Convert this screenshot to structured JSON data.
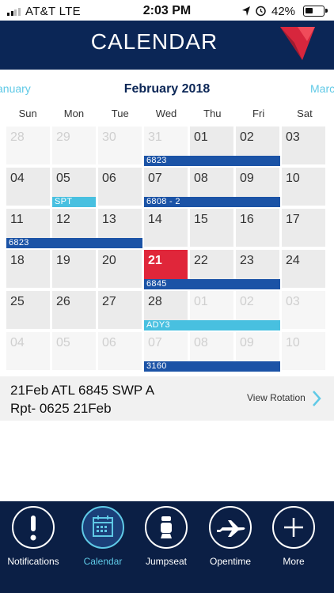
{
  "status": {
    "carrier": "AT&T  LTE",
    "time": "2:03 PM",
    "battery_pct": "42%"
  },
  "header": {
    "title": "CALENDAR",
    "logo": "delta-triangle-logo"
  },
  "month_nav": {
    "prev": "anuary",
    "current": "February 2018",
    "next": "Marc"
  },
  "weekdays": [
    "Sun",
    "Mon",
    "Tue",
    "Wed",
    "Thu",
    "Fri",
    "Sat"
  ],
  "weeks": [
    [
      "28",
      "29",
      "30",
      "31",
      "01",
      "02",
      "03"
    ],
    [
      "04",
      "05",
      "06",
      "07",
      "08",
      "09",
      "10"
    ],
    [
      "11",
      "12",
      "13",
      "14",
      "15",
      "16",
      "17"
    ],
    [
      "18",
      "19",
      "20",
      "21",
      "22",
      "23",
      "24"
    ],
    [
      "25",
      "26",
      "27",
      "28",
      "01",
      "02",
      "03"
    ],
    [
      "04",
      "05",
      "06",
      "07",
      "08",
      "09",
      "10"
    ]
  ],
  "trips": [
    {
      "label": "6823",
      "color": "#1b53a6"
    },
    {
      "label": "SPT",
      "color": "#48c0e0"
    },
    {
      "label": "6808 - 2",
      "color": "#1b53a6"
    },
    {
      "label": "6823",
      "color": "#1b53a6"
    },
    {
      "label": "6845",
      "color": "#1b53a6"
    },
    {
      "label": "ADY3",
      "color": "#48c0e0"
    },
    {
      "label": "3160",
      "color": "#1b53a6"
    }
  ],
  "detail": {
    "line1": "21Feb ATL 6845 SWP A",
    "line2": "Rpt- 0625 21Feb",
    "view_rotation": "View Rotation"
  },
  "tabs": [
    {
      "label": "Notifications",
      "icon": "exclamation-icon"
    },
    {
      "label": "Calendar",
      "icon": "calendar-icon"
    },
    {
      "label": "Jumpseat",
      "icon": "jumpseat-icon"
    },
    {
      "label": "Opentime",
      "icon": "airplane-icon"
    },
    {
      "label": "More",
      "icon": "plus-icon"
    }
  ],
  "colors": {
    "navy": "#0b2656",
    "today": "#e0263a",
    "accent": "#5fc9e6"
  }
}
